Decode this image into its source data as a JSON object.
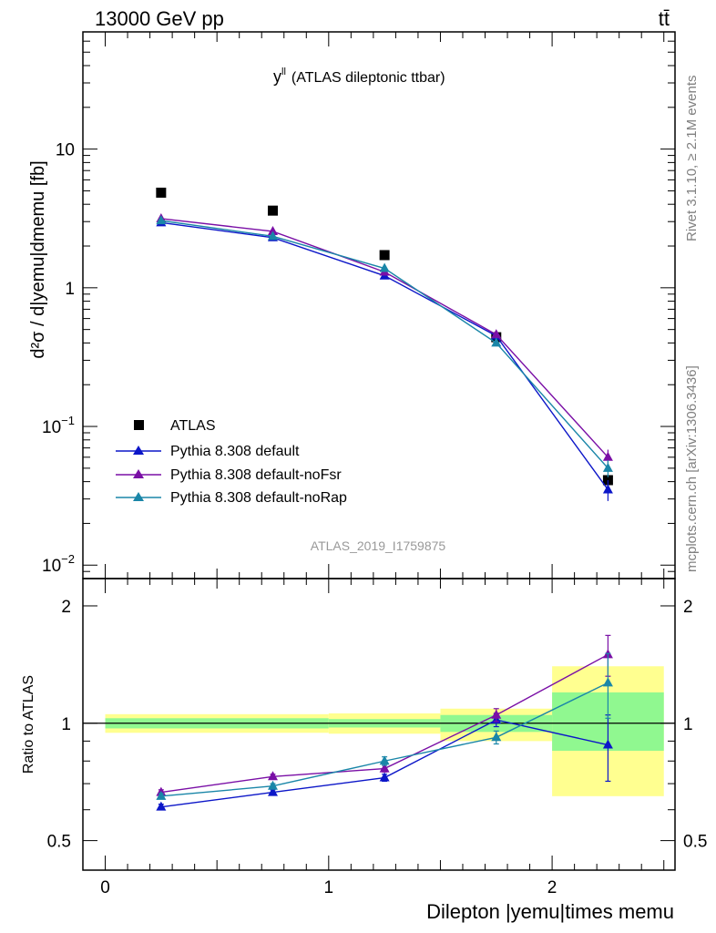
{
  "header": {
    "energy_label": "13000 GeV pp",
    "process_label": "tt̄",
    "side_rivet": "Rivet 3.1.10, ≥ 2.1M events",
    "side_mcplots": "mcplots.cern.ch [arXiv:1306.3436]",
    "analysis_id": "ATLAS_2019_I1759875"
  },
  "colors": {
    "atlas": "#000000",
    "pythia_default": "#0c16c8",
    "pythia_nofsr": "#7a0fa6",
    "pythia_norap": "#1a86a8",
    "band_stat": "#90f890",
    "band_total": "#ffff90"
  },
  "chart_data": [
    {
      "type": "scatter",
      "title": "y",
      "title_sup": "ll",
      "subtitle": "(ATLAS dileptonic ttbar)",
      "ylabel": "d²σ / d|yemu|dmemu [fb]",
      "yscale": "log",
      "ylim": [
        0.008,
        70
      ],
      "xlim": [
        -0.1,
        2.55
      ],
      "yticks": [
        {
          "v": 0.01,
          "base": "10",
          "exp": "−2"
        },
        {
          "v": 0.1,
          "base": "10",
          "exp": "−1"
        },
        {
          "v": 1,
          "base": "1",
          "exp": ""
        },
        {
          "v": 10,
          "base": "10",
          "exp": ""
        }
      ],
      "legend_position": "bottom-left",
      "series": [
        {
          "name": "ATLAS",
          "color_key": "atlas",
          "marker": "square",
          "x": [
            0.25,
            0.75,
            1.25,
            1.75,
            2.25
          ],
          "y": [
            4.85,
            3.6,
            1.72,
            0.44,
            0.041
          ],
          "err": [
            0.15,
            0.12,
            0.06,
            0.02,
            0.003
          ]
        },
        {
          "name": "Pythia 8.308 default",
          "color_key": "pythia_default",
          "marker": "triangle",
          "x": [
            0.25,
            0.75,
            1.25,
            1.75,
            2.25
          ],
          "y": [
            2.95,
            2.3,
            1.22,
            0.45,
            0.035
          ],
          "err": [
            0.04,
            0.03,
            0.02,
            0.01,
            0.006
          ]
        },
        {
          "name": "Pythia 8.308 default-noFsr",
          "color_key": "pythia_nofsr",
          "marker": "triangle",
          "x": [
            0.25,
            0.75,
            1.25,
            1.75,
            2.25
          ],
          "y": [
            3.15,
            2.55,
            1.3,
            0.46,
            0.06
          ],
          "err": [
            0.04,
            0.03,
            0.02,
            0.01,
            0.008
          ]
        },
        {
          "name": "Pythia 8.308 default-noRap",
          "color_key": "pythia_norap",
          "marker": "triangle",
          "x": [
            0.25,
            0.75,
            1.25,
            1.75,
            2.25
          ],
          "y": [
            3.05,
            2.35,
            1.38,
            0.4,
            0.05
          ],
          "err": [
            0.04,
            0.03,
            0.02,
            0.01,
            0.007
          ]
        }
      ]
    },
    {
      "type": "scatter",
      "ylabel": "Ratio to ATLAS",
      "xlabel": "Dilepton |yemu|times memu",
      "yscale": "log",
      "ylim": [
        0.42,
        2.35
      ],
      "xlim": [
        -0.1,
        2.55
      ],
      "xticks": [
        "0",
        "1",
        "2"
      ],
      "yticks": [
        "0.5",
        "1",
        "2"
      ],
      "reference_line": 1.0,
      "bands": [
        {
          "x0": 0.0,
          "x1": 1.0,
          "stat": [
            0.97,
            1.03
          ],
          "total": [
            0.945,
            1.055
          ]
        },
        {
          "x0": 1.0,
          "x1": 1.5,
          "stat": [
            0.975,
            1.025
          ],
          "total": [
            0.94,
            1.06
          ]
        },
        {
          "x0": 1.5,
          "x1": 2.0,
          "stat": [
            0.95,
            1.05
          ],
          "total": [
            0.9,
            1.09
          ]
        },
        {
          "x0": 2.0,
          "x1": 2.5,
          "stat": [
            0.85,
            1.2
          ],
          "total": [
            0.65,
            1.4
          ]
        }
      ],
      "series": [
        {
          "name": "Pythia 8.308 default",
          "color_key": "pythia_default",
          "x": [
            0.25,
            0.75,
            1.25,
            1.75,
            2.25
          ],
          "y": [
            0.61,
            0.665,
            0.725,
            1.02,
            0.88
          ],
          "err": [
            0.01,
            0.01,
            0.015,
            0.04,
            0.17
          ]
        },
        {
          "name": "Pythia 8.308 default-noFsr",
          "color_key": "pythia_nofsr",
          "x": [
            0.25,
            0.75,
            1.25,
            1.75,
            2.25
          ],
          "y": [
            0.665,
            0.73,
            0.765,
            1.05,
            1.5
          ],
          "err": [
            0.01,
            0.01,
            0.015,
            0.04,
            0.18
          ]
        },
        {
          "name": "Pythia 8.308 default-noRap",
          "color_key": "pythia_norap",
          "x": [
            0.25,
            0.75,
            1.25,
            1.75,
            2.25
          ],
          "y": [
            0.65,
            0.69,
            0.8,
            0.92,
            1.27
          ],
          "err": [
            0.01,
            0.01,
            0.02,
            0.035,
            0.24
          ]
        }
      ]
    }
  ]
}
